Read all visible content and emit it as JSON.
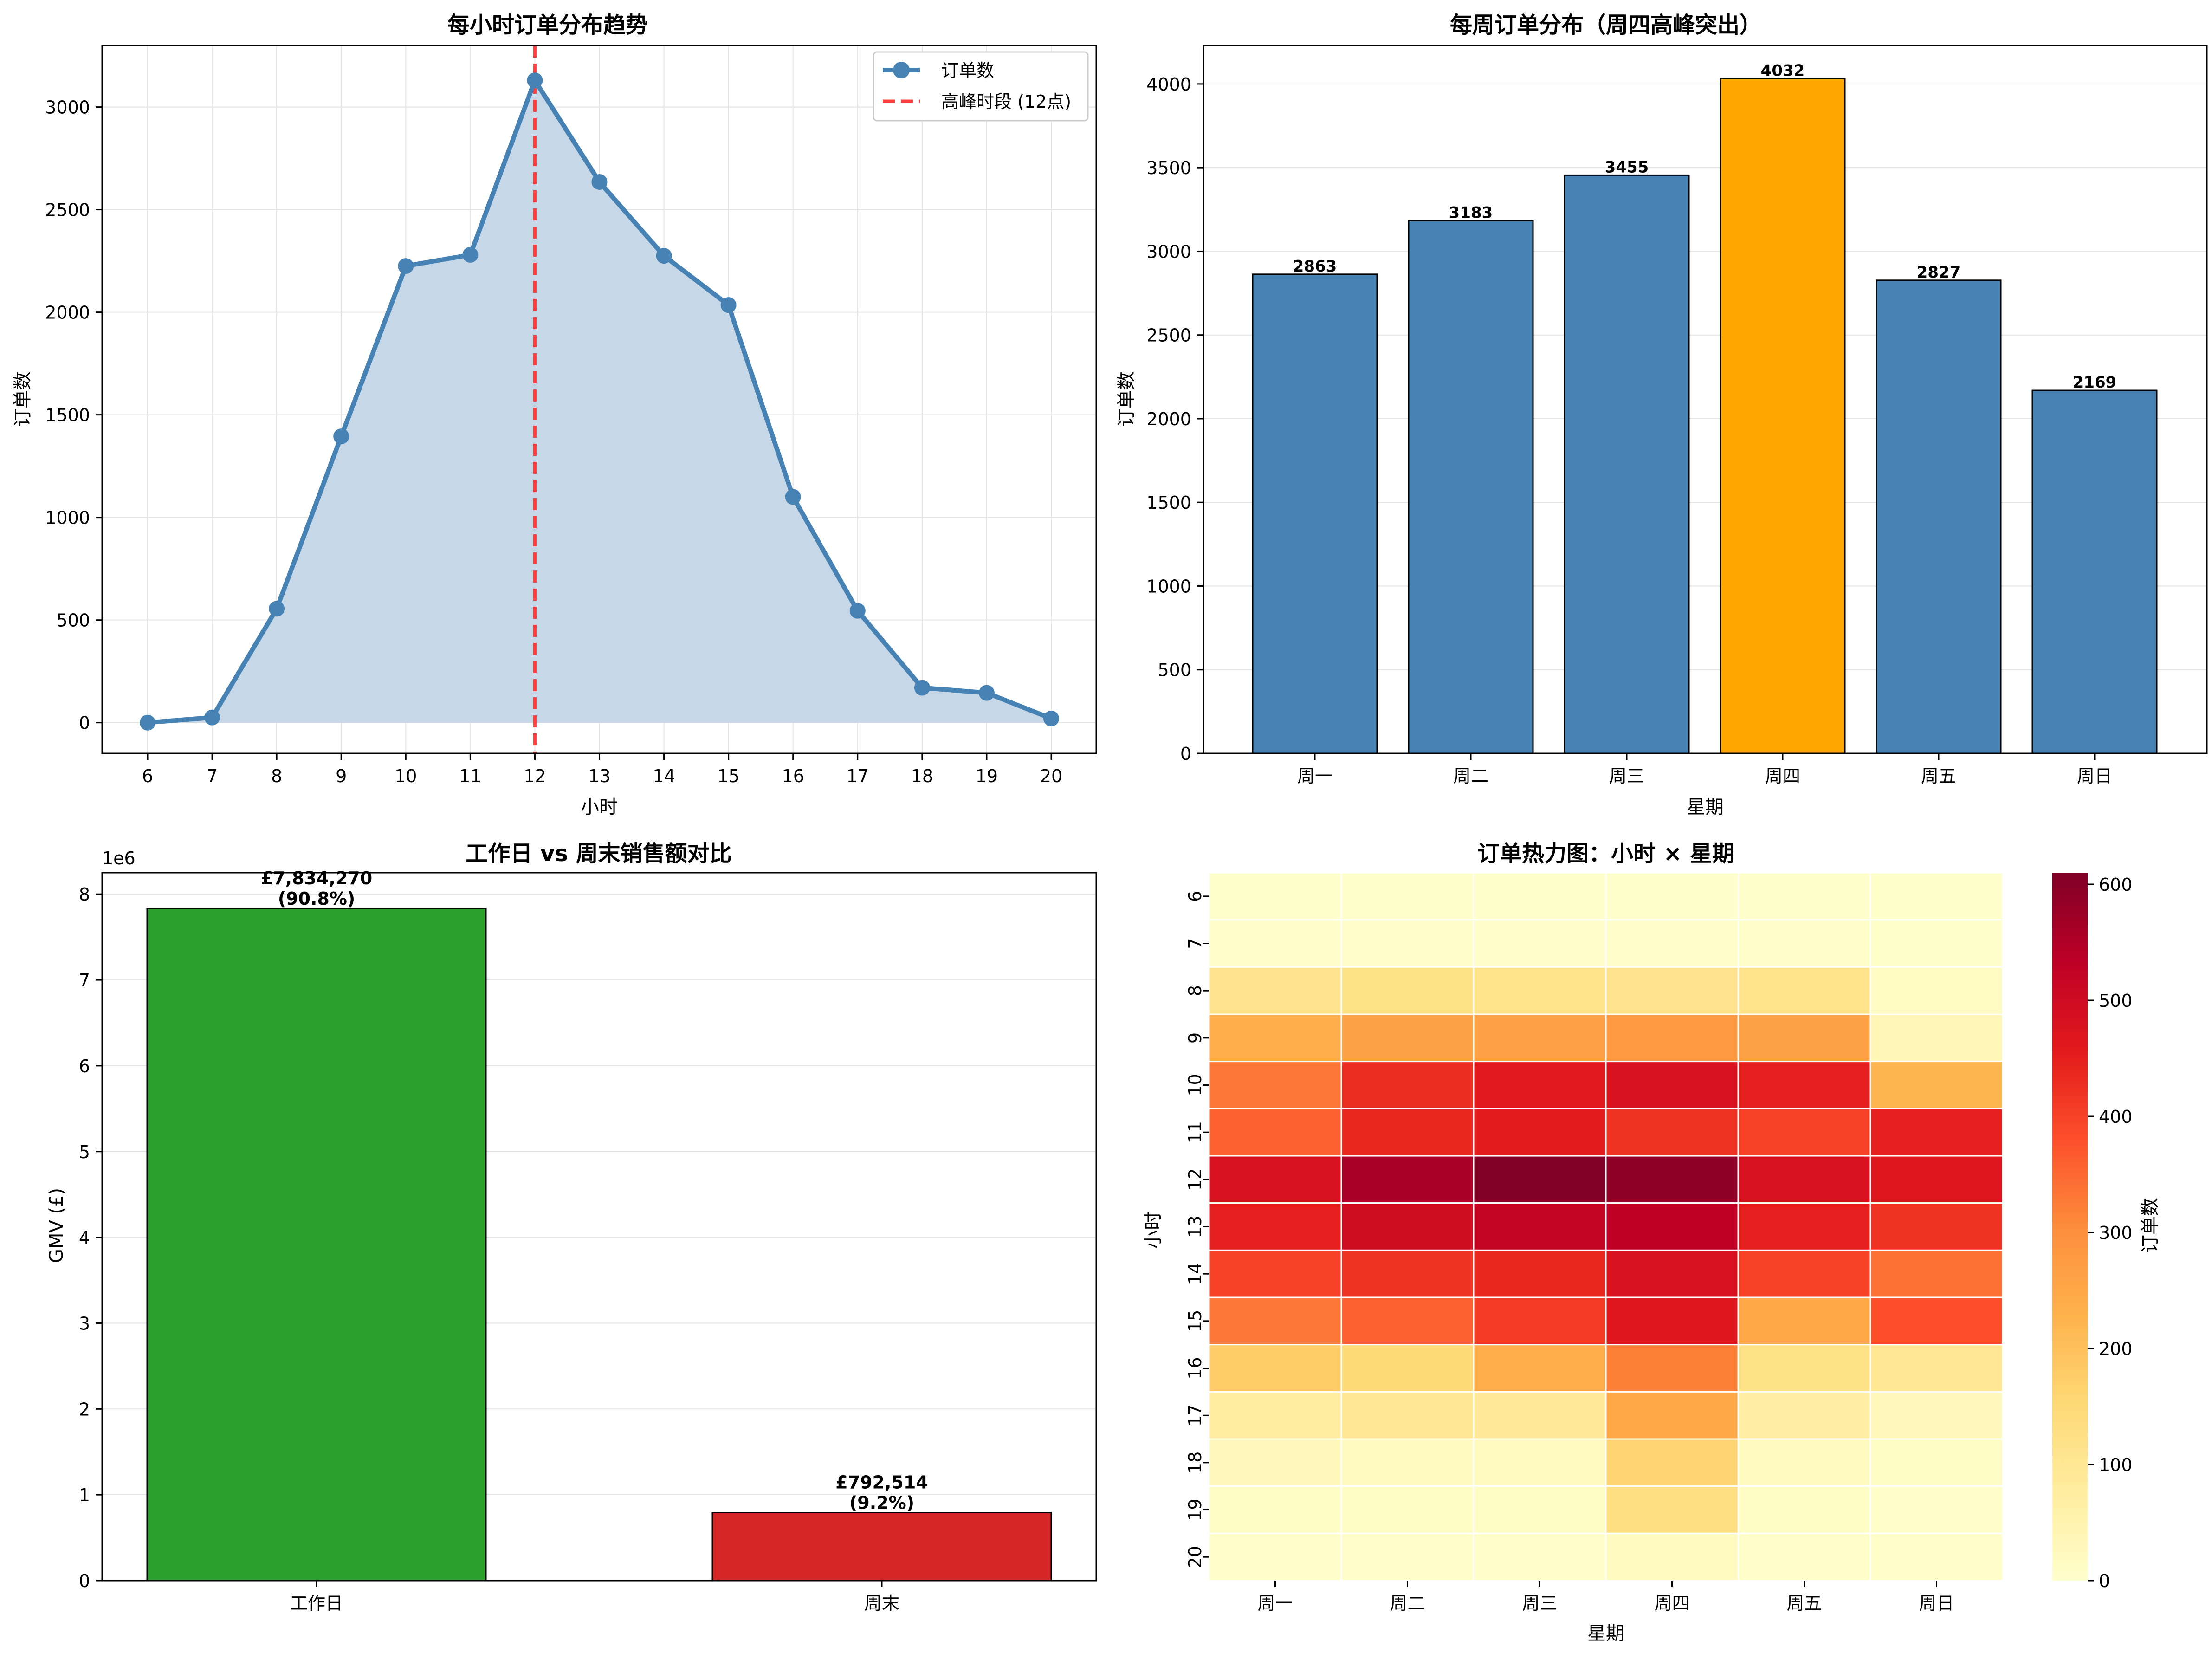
{
  "colors": {
    "line": "#4682b4",
    "fill": "#c6d7e8",
    "peak_line": "#ff3b3b",
    "bar_blue": "#4682b4",
    "bar_orange": "#ffa500",
    "green": "#2ca02c",
    "red": "#d62728",
    "grid": "#e3e3e3"
  },
  "chart_data": [
    {
      "type": "line",
      "title": "每小时订单分布趋势",
      "xlabel": "小时",
      "ylabel": "订单数",
      "x": [
        6,
        7,
        8,
        9,
        10,
        11,
        12,
        13,
        14,
        15,
        16,
        17,
        18,
        19,
        20
      ],
      "series": [
        {
          "name": "订单数",
          "values": [
            0,
            25,
            555,
            1395,
            2225,
            2280,
            3130,
            2635,
            2275,
            2035,
            1100,
            545,
            170,
            145,
            20
          ]
        }
      ],
      "reference_line": {
        "x": 12,
        "name": "高峰时段 (12点)"
      },
      "ylim": [
        -150,
        3300
      ],
      "yticks": [
        0,
        500,
        1000,
        1500,
        2000,
        2500,
        3000
      ],
      "grid": true,
      "legend": "top-right"
    },
    {
      "type": "bar",
      "title": "每周订单分布（周四高峰突出）",
      "xlabel": "星期",
      "ylabel": "订单数",
      "categories": [
        "周一",
        "周二",
        "周三",
        "周四",
        "周五",
        "周日"
      ],
      "values": [
        2863,
        3183,
        3455,
        4032,
        2827,
        2169
      ],
      "data_labels": [
        "2863",
        "3183",
        "3455",
        "4032",
        "2827",
        "2169"
      ],
      "highlight": "周四",
      "ylim": [
        0,
        4230
      ],
      "yticks": [
        0,
        500,
        1000,
        1500,
        2000,
        2500,
        3000,
        3500,
        4000
      ],
      "grid": true
    },
    {
      "type": "bar",
      "title": "工作日 vs 周末销售额对比",
      "ylabel": "GMV (£)",
      "axis_multiplier": "1e6",
      "categories": [
        "工作日",
        "周末"
      ],
      "values": [
        7834270,
        792514
      ],
      "data_labels": [
        "£7,834,270",
        "£792,514"
      ],
      "share_labels": [
        "(90.8%)",
        "(9.2%)"
      ],
      "ylim": [
        0,
        8250000
      ],
      "yticks": [
        0,
        1,
        2,
        3,
        4,
        5,
        6,
        7,
        8
      ],
      "grid": true
    },
    {
      "type": "heatmap",
      "title": "订单热力图：小时 × 星期",
      "xlabel": "星期",
      "ylabel": "小时",
      "x": [
        "周一",
        "周二",
        "周三",
        "周四",
        "周五",
        "周日"
      ],
      "y": [
        "6",
        "7",
        "8",
        "9",
        "10",
        "11",
        "12",
        "13",
        "14",
        "15",
        "16",
        "17",
        "18",
        "19",
        "20"
      ],
      "values": [
        [
          0,
          0,
          0,
          0,
          0,
          0
        ],
        [
          5,
          5,
          5,
          5,
          5,
          0
        ],
        [
          110,
          120,
          115,
          110,
          115,
          15
        ],
        [
          240,
          260,
          265,
          280,
          260,
          40
        ],
        [
          330,
          430,
          460,
          480,
          450,
          220
        ],
        [
          360,
          440,
          455,
          420,
          400,
          450
        ],
        [
          480,
          560,
          610,
          590,
          480,
          470
        ],
        [
          450,
          500,
          520,
          530,
          450,
          420
        ],
        [
          400,
          420,
          440,
          480,
          400,
          340
        ],
        [
          330,
          360,
          410,
          470,
          250,
          380
        ],
        [
          180,
          150,
          240,
          320,
          120,
          100
        ],
        [
          80,
          100,
          90,
          250,
          70,
          30
        ],
        [
          30,
          20,
          20,
          160,
          20,
          10
        ],
        [
          10,
          10,
          10,
          130,
          10,
          5
        ],
        [
          5,
          5,
          5,
          20,
          5,
          5
        ]
      ],
      "colorbar": {
        "label": "订单数",
        "min": 0,
        "max": 610,
        "ticks": [
          0,
          100,
          200,
          300,
          400,
          500,
          600
        ]
      }
    }
  ]
}
